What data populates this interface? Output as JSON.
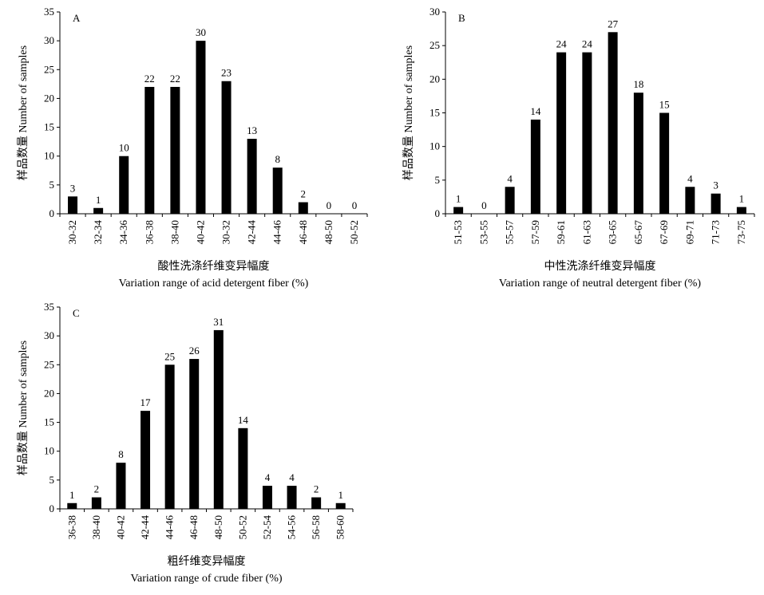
{
  "chart_data": [
    {
      "type": "bar",
      "panel_label": "A",
      "y_label": "样品数量 Number of samples",
      "x_label": [
        "酸性洗涤纤维变异幅度",
        "Variation range of acid detergent fiber (%)"
      ],
      "categories": [
        "30-32",
        "32-34",
        "34-36",
        "36-38",
        "38-40",
        "40-42",
        "30-32",
        "42-44",
        "44-46",
        "46-48",
        "48-50",
        "50-52"
      ],
      "values": [
        3,
        1,
        10,
        22,
        22,
        30,
        23,
        13,
        8,
        2,
        0,
        0
      ],
      "color": "#000000",
      "ylim": [
        0,
        35
      ],
      "yticks": [
        0,
        5,
        10,
        15,
        20,
        25,
        30,
        35
      ]
    },
    {
      "type": "bar",
      "panel_label": "B",
      "y_label": "样品数量 Number of samples",
      "x_label": [
        "中性洗涤纤维变异幅度",
        "Variation range of neutral detergent fiber (%)"
      ],
      "categories": [
        "51-53",
        "53-55",
        "55-57",
        "57-59",
        "59-61",
        "61-63",
        "63-65",
        "65-67",
        "67-69",
        "69-71",
        "71-73",
        "73-75"
      ],
      "values": [
        1,
        0,
        4,
        14,
        24,
        24,
        27,
        18,
        15,
        4,
        3,
        1
      ],
      "color": "#000000",
      "ylim": [
        0,
        30
      ],
      "yticks": [
        0,
        5,
        10,
        15,
        20,
        25,
        30
      ]
    },
    {
      "type": "bar",
      "panel_label": "C",
      "y_label": "样品数量 Number of samples",
      "x_label": [
        "粗纤维变异幅度",
        "Variation range of crude fiber (%)"
      ],
      "categories": [
        "36-38",
        "38-40",
        "40-42",
        "42-44",
        "44-46",
        "46-48",
        "48-50",
        "50-52",
        "52-54",
        "54-56",
        "56-58",
        "58-60"
      ],
      "values": [
        1,
        2,
        8,
        17,
        25,
        26,
        31,
        14,
        4,
        4,
        2,
        1
      ],
      "color": "#000000",
      "ylim": [
        0,
        35
      ],
      "yticks": [
        0,
        5,
        10,
        15,
        20,
        25,
        30,
        35
      ]
    }
  ]
}
